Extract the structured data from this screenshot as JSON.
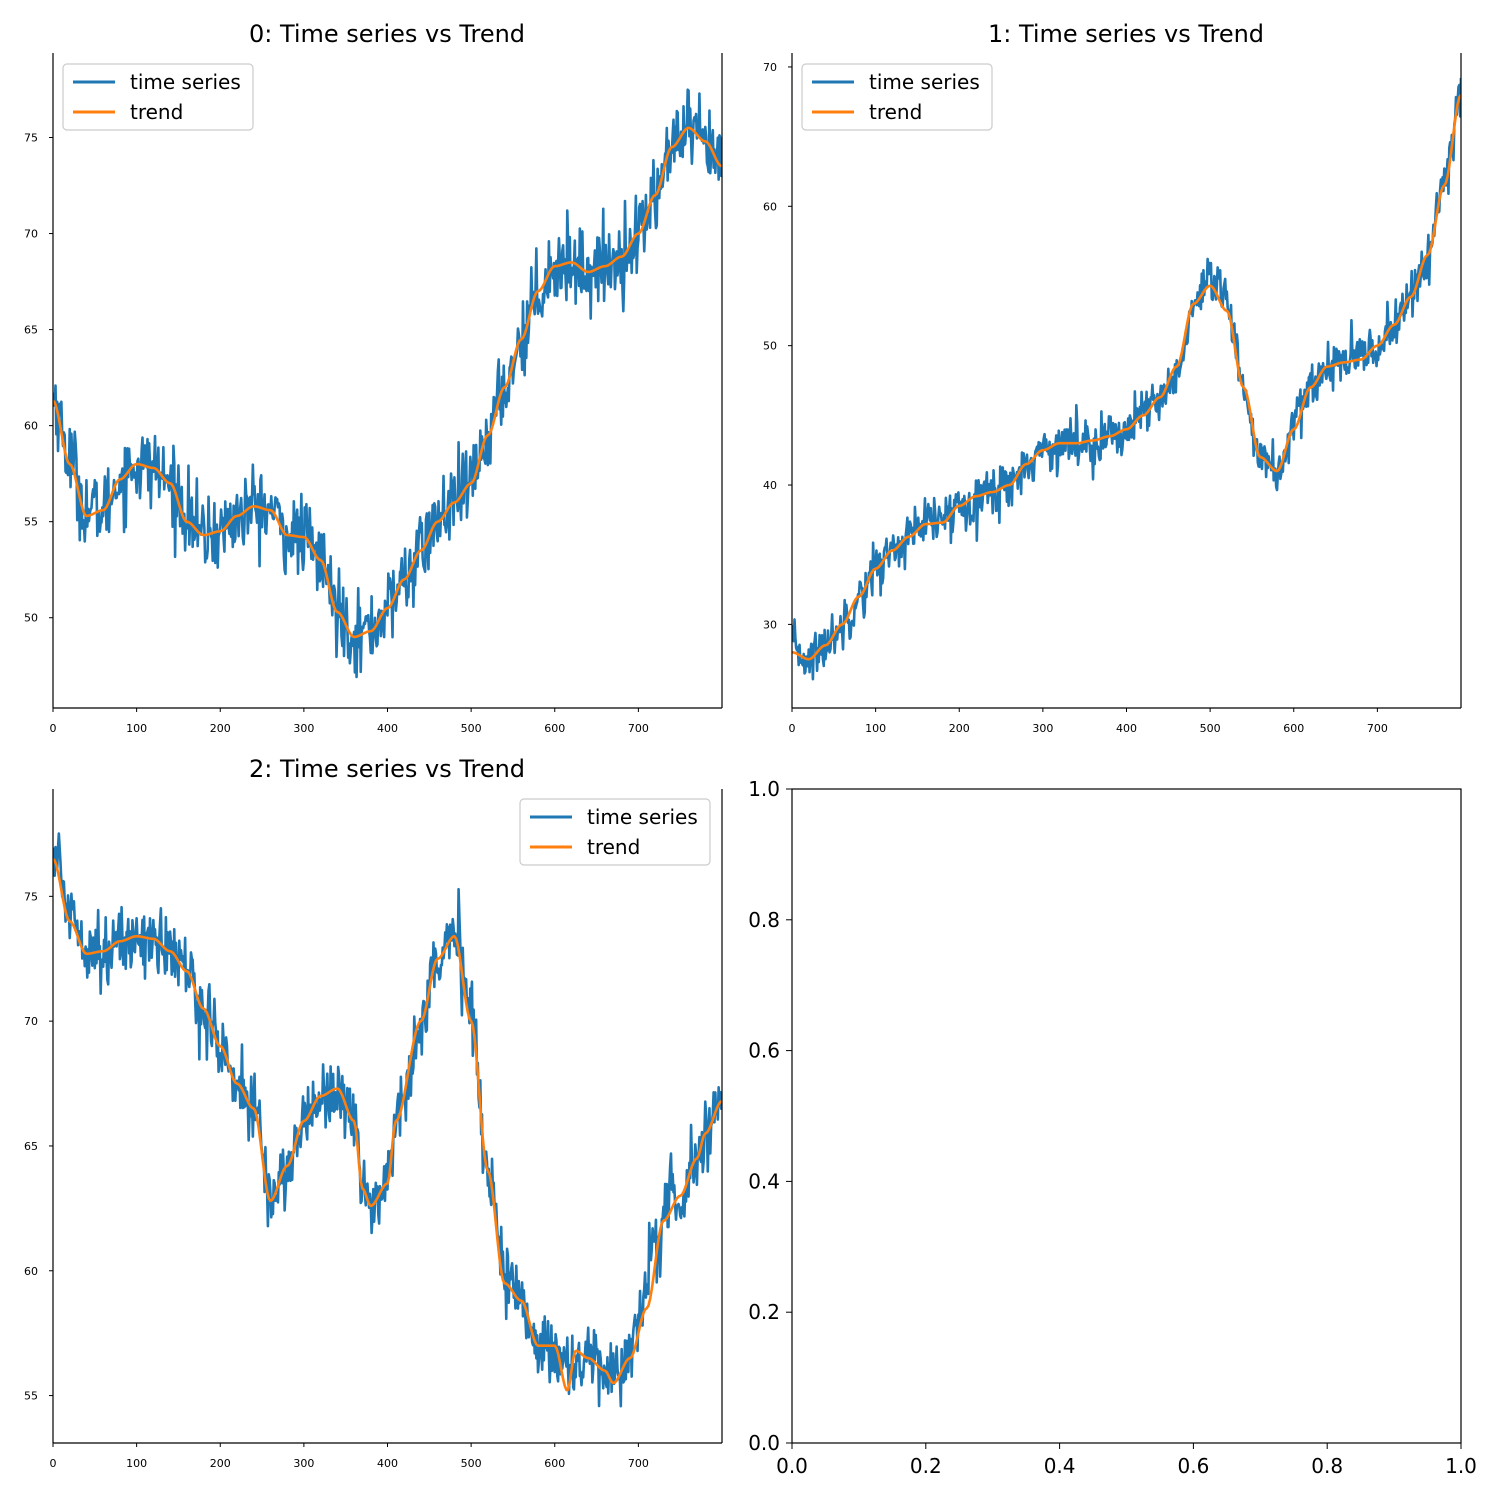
{
  "colors": {
    "series": "#1f77b4",
    "trend": "#ff7f0e",
    "axes": "#000000",
    "legend_border": "#cccccc"
  },
  "chart_data": [
    {
      "type": "line",
      "title": "0: Time series vs Trend",
      "xlim": [
        0,
        800
      ],
      "ylim": [
        45.3,
        79.4
      ],
      "x_ticks": [
        0,
        100,
        200,
        300,
        400,
        500,
        600,
        700
      ],
      "y_ticks": [
        50,
        55,
        60,
        65,
        70,
        75
      ],
      "legend": {
        "position": "upper left",
        "entries": [
          "time series",
          "trend"
        ]
      },
      "noise": 1.0,
      "series": [
        {
          "name": "time series",
          "anchors": [
            [
              0,
              61.5
            ],
            [
              20,
              58.3
            ],
            [
              40,
              55.6
            ],
            [
              60,
              55.6
            ],
            [
              80,
              57.2
            ],
            [
              100,
              58.0
            ],
            [
              120,
              57.8
            ],
            [
              140,
              57.0
            ],
            [
              160,
              55.5
            ],
            [
              180,
              54.2
            ],
            [
              200,
              54.5
            ],
            [
              220,
              55.2
            ],
            [
              240,
              55.8
            ],
            [
              260,
              55.6
            ],
            [
              280,
              54.3
            ],
            [
              300,
              54.2
            ],
            [
              320,
              53.0
            ],
            [
              340,
              50.5
            ],
            [
              360,
              49.2
            ],
            [
              380,
              49.3
            ],
            [
              400,
              50.5
            ],
            [
              420,
              52.0
            ],
            [
              440,
              53.5
            ],
            [
              460,
              55.0
            ],
            [
              480,
              56.0
            ],
            [
              500,
              57.0
            ],
            [
              520,
              59.5
            ],
            [
              540,
              62.0
            ],
            [
              560,
              64.5
            ],
            [
              580,
              67.0
            ],
            [
              600,
              68.3
            ],
            [
              620,
              68.5
            ],
            [
              640,
              68.0
            ],
            [
              660,
              68.3
            ],
            [
              680,
              68.8
            ],
            [
              700,
              70.0
            ],
            [
              720,
              72.0
            ],
            [
              740,
              74.5
            ],
            [
              760,
              75.3
            ],
            [
              780,
              74.5
            ],
            [
              800,
              73.5
            ]
          ]
        },
        {
          "name": "trend",
          "anchors": [
            [
              0,
              61.3
            ],
            [
              20,
              58.0
            ],
            [
              40,
              55.3
            ],
            [
              60,
              55.6
            ],
            [
              80,
              57.2
            ],
            [
              100,
              58.0
            ],
            [
              120,
              57.8
            ],
            [
              140,
              57.0
            ],
            [
              160,
              55.0
            ],
            [
              180,
              54.3
            ],
            [
              200,
              54.5
            ],
            [
              220,
              55.3
            ],
            [
              240,
              55.8
            ],
            [
              260,
              55.6
            ],
            [
              280,
              54.3
            ],
            [
              300,
              54.2
            ],
            [
              320,
              53.0
            ],
            [
              340,
              50.3
            ],
            [
              360,
              49.0
            ],
            [
              380,
              49.3
            ],
            [
              400,
              50.5
            ],
            [
              420,
              52.0
            ],
            [
              440,
              53.5
            ],
            [
              460,
              55.0
            ],
            [
              480,
              56.0
            ],
            [
              500,
              57.0
            ],
            [
              520,
              59.5
            ],
            [
              540,
              62.0
            ],
            [
              560,
              64.5
            ],
            [
              580,
              67.0
            ],
            [
              600,
              68.3
            ],
            [
              620,
              68.5
            ],
            [
              640,
              68.0
            ],
            [
              660,
              68.3
            ],
            [
              680,
              68.8
            ],
            [
              700,
              70.0
            ],
            [
              720,
              72.0
            ],
            [
              740,
              74.5
            ],
            [
              760,
              75.5
            ],
            [
              780,
              74.8
            ],
            [
              800,
              73.5
            ]
          ]
        }
      ]
    },
    {
      "type": "line",
      "title": "1: Time series vs Trend",
      "xlim": [
        0,
        800
      ],
      "ylim": [
        24.0,
        71.0
      ],
      "x_ticks": [
        0,
        100,
        200,
        300,
        400,
        500,
        600,
        700
      ],
      "y_ticks": [
        30,
        40,
        50,
        60,
        70
      ],
      "legend": {
        "position": "upper left",
        "entries": [
          "time series",
          "trend"
        ]
      },
      "noise": 0.9,
      "series": [
        {
          "name": "time series",
          "anchors": [
            [
              0,
              28.3
            ],
            [
              20,
              27.5
            ],
            [
              40,
              28.5
            ],
            [
              60,
              30.0
            ],
            [
              80,
              32.0
            ],
            [
              100,
              34.0
            ],
            [
              120,
              35.3
            ],
            [
              140,
              36.3
            ],
            [
              160,
              37.2
            ],
            [
              180,
              37.5
            ],
            [
              200,
              38.5
            ],
            [
              220,
              39.2
            ],
            [
              240,
              39.5
            ],
            [
              260,
              40.0
            ],
            [
              280,
              41.5
            ],
            [
              300,
              42.5
            ],
            [
              320,
              43.0
            ],
            [
              340,
              43.0
            ],
            [
              360,
              43.2
            ],
            [
              380,
              43.5
            ],
            [
              400,
              44.0
            ],
            [
              420,
              45.0
            ],
            [
              440,
              46.0
            ],
            [
              460,
              48.0
            ],
            [
              480,
              52.5
            ],
            [
              500,
              54.5
            ],
            [
              520,
              53.0
            ],
            [
              540,
              47.0
            ],
            [
              560,
              42.0
            ],
            [
              580,
              41.0
            ],
            [
              600,
              44.0
            ],
            [
              620,
              47.0
            ],
            [
              640,
              48.5
            ],
            [
              660,
              48.8
            ],
            [
              680,
              49.0
            ],
            [
              700,
              50.0
            ],
            [
              720,
              51.5
            ],
            [
              740,
              53.5
            ],
            [
              760,
              56.5
            ],
            [
              780,
              61.5
            ],
            [
              800,
              68.0
            ]
          ]
        },
        {
          "name": "trend",
          "anchors": [
            [
              0,
              28.0
            ],
            [
              20,
              27.5
            ],
            [
              40,
              28.5
            ],
            [
              60,
              30.0
            ],
            [
              80,
              32.0
            ],
            [
              100,
              34.0
            ],
            [
              120,
              35.3
            ],
            [
              140,
              36.3
            ],
            [
              160,
              37.2
            ],
            [
              180,
              37.3
            ],
            [
              200,
              38.5
            ],
            [
              220,
              39.2
            ],
            [
              240,
              39.5
            ],
            [
              260,
              40.0
            ],
            [
              280,
              41.5
            ],
            [
              300,
              42.5
            ],
            [
              320,
              43.0
            ],
            [
              340,
              43.0
            ],
            [
              360,
              43.2
            ],
            [
              380,
              43.5
            ],
            [
              400,
              44.0
            ],
            [
              420,
              45.0
            ],
            [
              440,
              46.3
            ],
            [
              460,
              48.5
            ],
            [
              480,
              53.0
            ],
            [
              500,
              54.3
            ],
            [
              520,
              52.5
            ],
            [
              540,
              47.0
            ],
            [
              560,
              42.0
            ],
            [
              580,
              41.0
            ],
            [
              600,
              44.0
            ],
            [
              620,
              47.0
            ],
            [
              640,
              48.5
            ],
            [
              660,
              48.8
            ],
            [
              680,
              49.0
            ],
            [
              700,
              50.0
            ],
            [
              720,
              51.5
            ],
            [
              740,
              53.5
            ],
            [
              760,
              56.5
            ],
            [
              780,
              61.5
            ],
            [
              800,
              68.0
            ]
          ]
        }
      ]
    },
    {
      "type": "line",
      "title": "2: Time series vs Trend",
      "xlim": [
        0,
        800
      ],
      "ylim": [
        53.1,
        79.3
      ],
      "x_ticks": [
        0,
        100,
        200,
        300,
        400,
        500,
        600,
        700
      ],
      "y_ticks": [
        55,
        60,
        65,
        70,
        75
      ],
      "legend": {
        "position": "upper right",
        "entries": [
          "time series",
          "trend"
        ]
      },
      "noise": 0.7,
      "series": [
        {
          "name": "time series",
          "anchors": [
            [
              0,
              76.8
            ],
            [
              20,
              74.5
            ],
            [
              40,
              73.2
            ],
            [
              60,
              72.8
            ],
            [
              80,
              73.0
            ],
            [
              100,
              73.4
            ],
            [
              120,
              73.3
            ],
            [
              140,
              72.8
            ],
            [
              160,
              72.0
            ],
            [
              180,
              70.5
            ],
            [
              200,
              69.0
            ],
            [
              220,
              67.5
            ],
            [
              240,
              66.5
            ],
            [
              260,
              63.0
            ],
            [
              280,
              64.0
            ],
            [
              300,
              66.0
            ],
            [
              320,
              67.0
            ],
            [
              340,
              67.3
            ],
            [
              360,
              66.0
            ],
            [
              370,
              63.5
            ],
            [
              380,
              62.7
            ],
            [
              400,
              63.5
            ],
            [
              410,
              66.0
            ],
            [
              440,
              70.0
            ],
            [
              460,
              72.5
            ],
            [
              480,
              73.3
            ],
            [
              500,
              70.5
            ],
            [
              520,
              64.0
            ],
            [
              540,
              60.0
            ],
            [
              560,
              58.8
            ],
            [
              580,
              57.0
            ],
            [
              600,
              57.0
            ],
            [
              620,
              56.0
            ],
            [
              640,
              56.5
            ],
            [
              660,
              56.0
            ],
            [
              680,
              56.0
            ],
            [
              700,
              58.0
            ],
            [
              720,
              61.0
            ],
            [
              740,
              63.0
            ],
            [
              760,
              63.5
            ],
            [
              780,
              65.5
            ],
            [
              800,
              66.8
            ]
          ]
        },
        {
          "name": "trend",
          "anchors": [
            [
              0,
              76.5
            ],
            [
              20,
              74.0
            ],
            [
              40,
              72.7
            ],
            [
              60,
              72.8
            ],
            [
              80,
              73.2
            ],
            [
              100,
              73.4
            ],
            [
              120,
              73.3
            ],
            [
              140,
              72.8
            ],
            [
              160,
              72.0
            ],
            [
              180,
              70.5
            ],
            [
              200,
              69.0
            ],
            [
              220,
              67.5
            ],
            [
              240,
              66.5
            ],
            [
              260,
              62.8
            ],
            [
              280,
              64.2
            ],
            [
              300,
              66.0
            ],
            [
              320,
              67.0
            ],
            [
              340,
              67.3
            ],
            [
              360,
              66.0
            ],
            [
              370,
              63.3
            ],
            [
              380,
              62.6
            ],
            [
              400,
              63.5
            ],
            [
              410,
              66.0
            ],
            [
              440,
              70.0
            ],
            [
              460,
              72.5
            ],
            [
              480,
              73.4
            ],
            [
              500,
              70.0
            ],
            [
              520,
              64.0
            ],
            [
              540,
              59.5
            ],
            [
              560,
              58.8
            ],
            [
              580,
              57.0
            ],
            [
              600,
              57.0
            ],
            [
              615,
              55.2
            ],
            [
              625,
              56.8
            ],
            [
              640,
              56.5
            ],
            [
              660,
              56.0
            ],
            [
              670,
              55.5
            ],
            [
              690,
              56.5
            ],
            [
              710,
              58.5
            ],
            [
              730,
              62.0
            ],
            [
              750,
              63.0
            ],
            [
              770,
              64.5
            ],
            [
              780,
              65.5
            ],
            [
              800,
              66.8
            ]
          ]
        }
      ]
    },
    {
      "type": "line",
      "title": "",
      "xlim": [
        0.0,
        1.0
      ],
      "ylim": [
        0.0,
        1.0
      ],
      "x_ticks": [
        "0.0",
        "0.2",
        "0.4",
        "0.6",
        "0.8",
        "1.0"
      ],
      "y_ticks": [
        "0.0",
        "0.2",
        "0.4",
        "0.6",
        "0.8",
        "1.0"
      ],
      "series": []
    }
  ]
}
